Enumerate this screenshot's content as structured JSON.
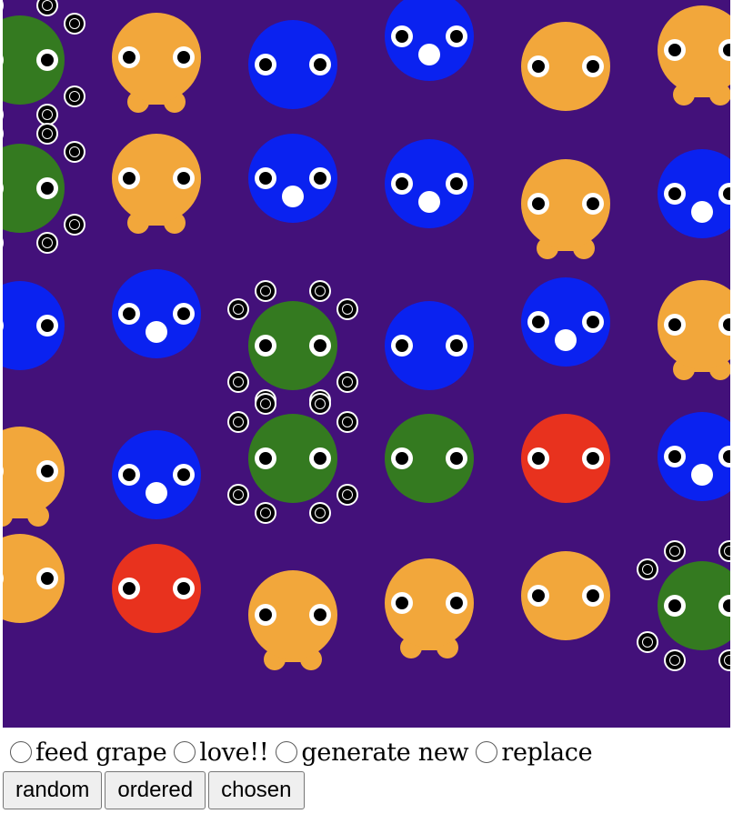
{
  "board": {
    "background": "#43117a",
    "colors": {
      "green": "#347a20",
      "orange": "#f2a73b",
      "blue": "#0a22f0",
      "red": "#e8321e"
    },
    "creatures": [
      {
        "kind": "green",
        "col": 0,
        "row": 0
      },
      {
        "kind": "orange",
        "col": 1,
        "row": 0
      },
      {
        "kind": "blue",
        "col": 2,
        "row": 0
      },
      {
        "kind": "blue-mouth",
        "col": 3,
        "row": 0
      },
      {
        "kind": "orange-plain",
        "col": 4,
        "row": 0
      },
      {
        "kind": "orange",
        "col": 5,
        "row": 0
      },
      {
        "kind": "green",
        "col": 0,
        "row": 1
      },
      {
        "kind": "orange",
        "col": 1,
        "row": 1
      },
      {
        "kind": "blue-mouth",
        "col": 2,
        "row": 1
      },
      {
        "kind": "blue-mouth",
        "col": 3,
        "row": 1
      },
      {
        "kind": "orange",
        "col": 4,
        "row": 1
      },
      {
        "kind": "blue-mouth",
        "col": 5,
        "row": 1
      },
      {
        "kind": "blue",
        "col": 0,
        "row": 2
      },
      {
        "kind": "blue-mouth",
        "col": 1,
        "row": 2
      },
      {
        "kind": "green",
        "col": 2,
        "row": 2
      },
      {
        "kind": "blue",
        "col": 3,
        "row": 2
      },
      {
        "kind": "blue-mouth",
        "col": 4,
        "row": 2
      },
      {
        "kind": "orange",
        "col": 5,
        "row": 2
      },
      {
        "kind": "orange",
        "col": 0,
        "row": 3
      },
      {
        "kind": "blue-mouth",
        "col": 1,
        "row": 3
      },
      {
        "kind": "green",
        "col": 2,
        "row": 3
      },
      {
        "kind": "green-plain",
        "col": 3,
        "row": 3
      },
      {
        "kind": "red",
        "col": 4,
        "row": 3
      },
      {
        "kind": "blue-mouth",
        "col": 5,
        "row": 3
      },
      {
        "kind": "orange-plain",
        "col": 0,
        "row": 4
      },
      {
        "kind": "red",
        "col": 1,
        "row": 4
      },
      {
        "kind": "orange",
        "col": 2,
        "row": 4
      },
      {
        "kind": "orange",
        "col": 3,
        "row": 4
      },
      {
        "kind": "orange-plain",
        "col": 4,
        "row": 4
      },
      {
        "kind": "green",
        "col": 5,
        "row": 4
      }
    ]
  },
  "controls": {
    "radios": [
      {
        "label": "feed grape"
      },
      {
        "label": "love!!"
      },
      {
        "label": "generate new"
      },
      {
        "label": "replace"
      }
    ],
    "buttons": {
      "random": "random",
      "ordered": "ordered",
      "chosen": "chosen"
    }
  }
}
